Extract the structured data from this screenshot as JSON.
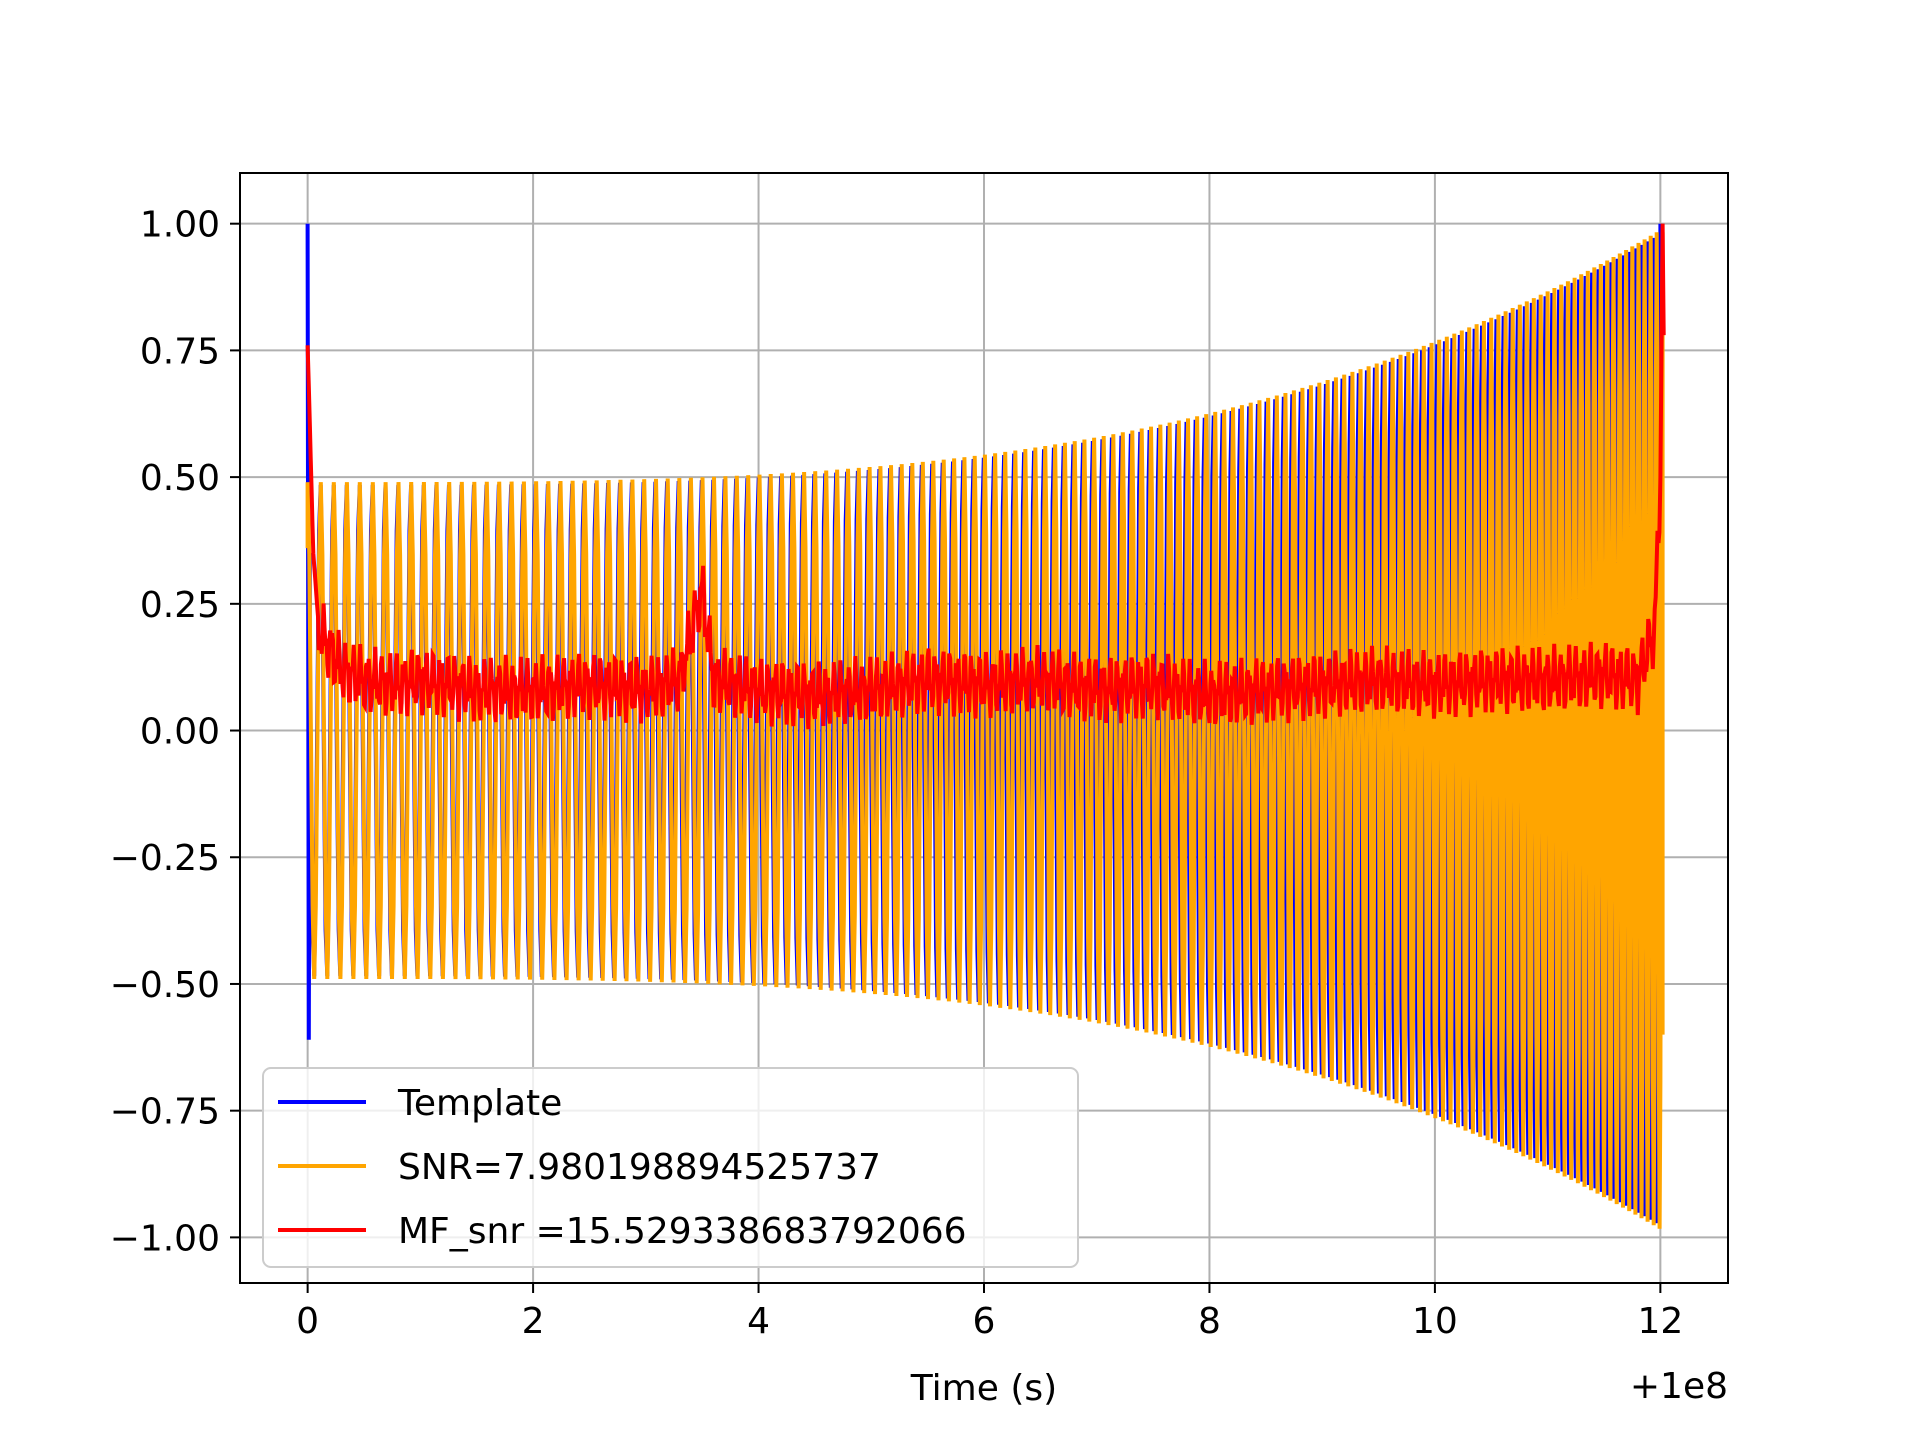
{
  "chart_data": {
    "type": "line",
    "title": "",
    "xlabel": "Time (s)",
    "ylabel": "",
    "x_offset_label": "+1e8",
    "xlim": [
      -0.6,
      12.6
    ],
    "ylim": [
      -1.09,
      1.1
    ],
    "grid": true,
    "legend_position": "lower-left",
    "x_ticks": [
      0,
      2,
      4,
      6,
      8,
      10,
      12
    ],
    "x_tick_labels": [
      "0",
      "2",
      "4",
      "6",
      "8",
      "10",
      "12"
    ],
    "y_ticks": [
      -1.0,
      -0.75,
      -0.5,
      -0.25,
      0.0,
      0.25,
      0.5,
      0.75,
      1.0
    ],
    "y_tick_labels": [
      "−1.00",
      "−0.75",
      "−0.50",
      "−0.25",
      "0.00",
      "0.25",
      "0.50",
      "0.75",
      "1.00"
    ],
    "series": [
      {
        "name": "Template",
        "color": "#0000ff",
        "description_values": {
          "start_x": 0.0,
          "end_x": 12.0,
          "initial_peak": 1.0,
          "initial_trough": -0.61,
          "envelope_start": 0.49,
          "envelope_end": 0.99,
          "cycles": 142
        }
      },
      {
        "name": "SNR=7.980198894525737",
        "color": "#ffa500",
        "description_values": {
          "start_x": 0.0,
          "end_x": 12.02,
          "envelope_start": 0.49,
          "envelope_end": 0.99,
          "cycles": 142
        }
      },
      {
        "name": "MF_snr =15.529338683792066",
        "color": "#ff0000",
        "points": [
          [
            0.0,
            0.76
          ],
          [
            0.02,
            0.6
          ],
          [
            0.05,
            0.35
          ],
          [
            0.1,
            0.2
          ],
          [
            0.2,
            0.16
          ],
          [
            0.3,
            0.12
          ],
          [
            0.5,
            0.1
          ],
          [
            0.8,
            0.09
          ],
          [
            1.0,
            0.1
          ],
          [
            1.5,
            0.08
          ],
          [
            2.0,
            0.08
          ],
          [
            2.5,
            0.09
          ],
          [
            3.0,
            0.08
          ],
          [
            3.3,
            0.1
          ],
          [
            3.5,
            0.28
          ],
          [
            3.6,
            0.1
          ],
          [
            4.0,
            0.08
          ],
          [
            4.5,
            0.07
          ],
          [
            5.0,
            0.08
          ],
          [
            5.5,
            0.1
          ],
          [
            6.0,
            0.09
          ],
          [
            6.5,
            0.1
          ],
          [
            7.0,
            0.08
          ],
          [
            7.5,
            0.09
          ],
          [
            8.0,
            0.07
          ],
          [
            8.5,
            0.08
          ],
          [
            9.0,
            0.09
          ],
          [
            9.5,
            0.1
          ],
          [
            10.0,
            0.09
          ],
          [
            10.5,
            0.1
          ],
          [
            11.0,
            0.1
          ],
          [
            11.5,
            0.11
          ],
          [
            11.8,
            0.1
          ],
          [
            11.95,
            0.2
          ],
          [
            12.0,
            0.5
          ],
          [
            12.02,
            1.0
          ],
          [
            12.03,
            0.78
          ]
        ]
      }
    ]
  }
}
